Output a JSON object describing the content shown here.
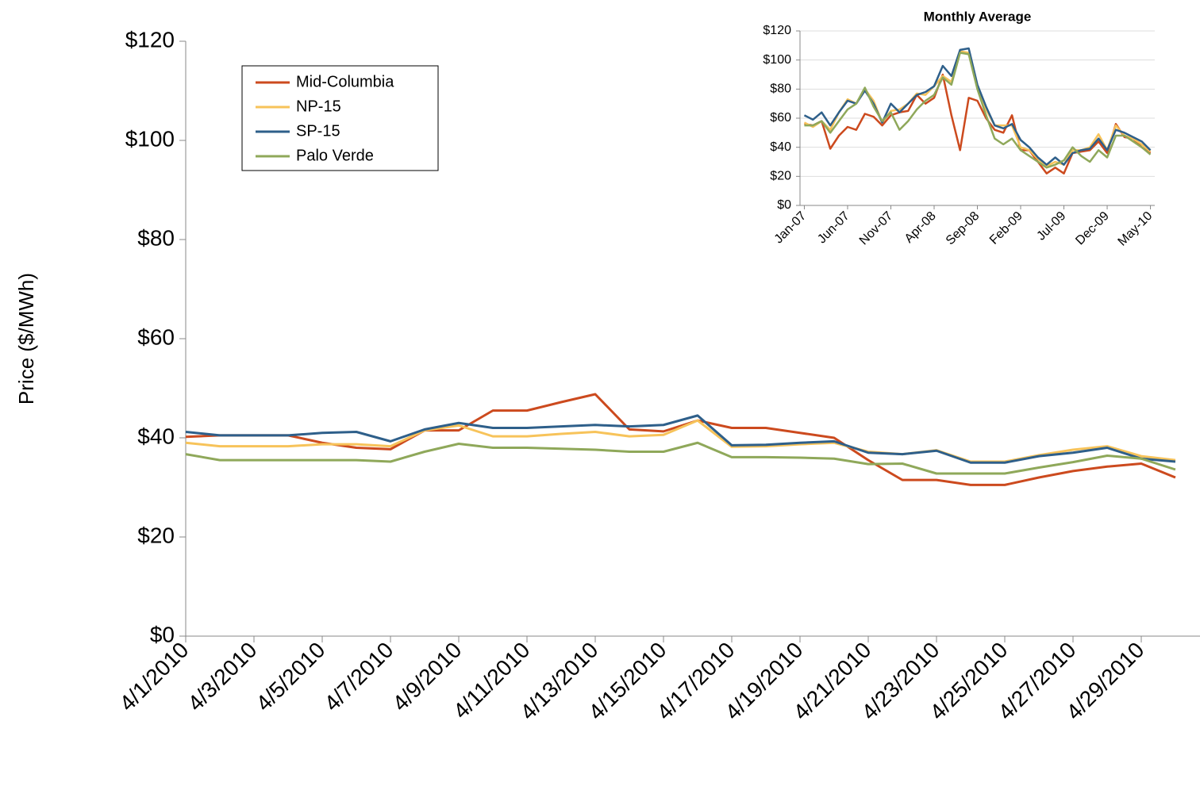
{
  "chart_data": [
    {
      "type": "line",
      "y_label": "Price ($/MWh)",
      "categories": [
        "4/1/2010",
        null,
        "4/3/2010",
        null,
        "4/5/2010",
        null,
        "4/7/2010",
        null,
        "4/9/2010",
        null,
        "4/11/2010",
        null,
        "4/13/2010",
        null,
        "4/15/2010",
        null,
        "4/17/2010",
        null,
        "4/19/2010",
        null,
        "4/21/2010",
        null,
        "4/23/2010",
        null,
        "4/25/2010",
        null,
        "4/27/2010",
        null,
        "4/29/2010",
        null
      ],
      "series": [
        {
          "name": "Mid-Columbia",
          "color": "#cc4a1e",
          "values": [
            40.2,
            40.5,
            40.5,
            40.5,
            39,
            38,
            37.7,
            41.5,
            41.5,
            45.5,
            45.5,
            47.2,
            48.8,
            41.7,
            41.3,
            43.5,
            42,
            42,
            41,
            40,
            35.5,
            31.5,
            31.5,
            30.5,
            30.5,
            32,
            33.3,
            34.2,
            34.8,
            32
          ]
        },
        {
          "name": "NP-15",
          "color": "#f7c35a",
          "values": [
            39,
            38.3,
            38.3,
            38.3,
            38.7,
            38.7,
            38.3,
            41.5,
            42.5,
            40.3,
            40.3,
            40.8,
            41.2,
            40.3,
            40.6,
            43.5,
            38.2,
            38.3,
            38.7,
            39,
            37.2,
            36.7,
            37.5,
            35.2,
            35.2,
            36.5,
            37.6,
            38.3,
            36.3,
            35.5
          ]
        },
        {
          "name": "SP-15",
          "color": "#2e5f8a",
          "values": [
            41.2,
            40.5,
            40.5,
            40.5,
            41,
            41.2,
            39.3,
            41.7,
            43,
            42,
            42,
            42.3,
            42.6,
            42.3,
            42.6,
            44.5,
            38.5,
            38.6,
            39,
            39.3,
            37,
            36.7,
            37.4,
            35,
            35,
            36.3,
            37,
            38,
            35.8,
            35.2
          ]
        },
        {
          "name": "Palo Verde",
          "color": "#8fa85a",
          "values": [
            36.7,
            35.5,
            35.5,
            35.5,
            35.5,
            35.5,
            35.2,
            37.2,
            38.8,
            38,
            38,
            37.8,
            37.6,
            37.2,
            37.2,
            39,
            36.1,
            36.1,
            36,
            35.8,
            34.7,
            34.8,
            32.8,
            32.8,
            32.8,
            34,
            35.1,
            36.4,
            35.8,
            33.6
          ]
        }
      ],
      "ylim": [
        0,
        120
      ],
      "yticks": [
        {
          "value": 0,
          "label": "$0"
        },
        {
          "value": 20,
          "label": "$20"
        },
        {
          "value": 40,
          "label": "$40"
        },
        {
          "value": 60,
          "label": "$60"
        },
        {
          "value": 80,
          "label": "$80"
        },
        {
          "value": 100,
          "label": "$100"
        },
        {
          "value": 120,
          "label": "$120"
        }
      ],
      "grid": false,
      "legend": "upper left"
    },
    {
      "type": "line",
      "title": "Monthly Average",
      "categories": [
        "Jan-07",
        null,
        null,
        null,
        null,
        "Jun-07",
        null,
        null,
        null,
        null,
        "Nov-07",
        null,
        null,
        null,
        null,
        "Apr-08",
        null,
        null,
        null,
        null,
        "Sep-08",
        null,
        null,
        null,
        null,
        "Feb-09",
        null,
        null,
        null,
        null,
        "Jul-09",
        null,
        null,
        null,
        null,
        "Dec-09",
        null,
        null,
        null,
        null,
        "May-10"
      ],
      "series": [
        {
          "color": "#cc4a1e",
          "values": [
            56,
            55,
            58,
            39,
            48,
            54,
            52,
            63,
            61,
            55,
            62,
            64,
            65,
            76,
            70,
            74,
            90,
            62,
            38,
            74,
            72,
            60,
            52,
            50,
            62,
            38,
            38,
            30,
            22,
            26,
            22,
            36,
            37,
            38,
            44,
            36,
            56,
            47,
            46,
            40,
            36
          ]
        },
        {
          "color": "#f7c35a",
          "values": [
            57,
            54,
            58,
            52,
            64,
            73,
            70,
            80,
            72,
            57,
            65,
            66,
            70,
            77,
            76,
            82,
            89,
            85,
            106,
            105,
            82,
            66,
            55,
            55,
            55,
            40,
            38,
            32,
            27,
            30,
            28,
            38,
            38,
            40,
            49,
            38,
            55,
            48,
            46,
            42,
            37
          ]
        },
        {
          "color": "#2e5f8a",
          "values": [
            62,
            59,
            64,
            55,
            64,
            72,
            70,
            79,
            70,
            57,
            70,
            64,
            70,
            76,
            78,
            82,
            96,
            89,
            107,
            108,
            83,
            68,
            55,
            53,
            56,
            45,
            40,
            33,
            28,
            33,
            28,
            36,
            38,
            39,
            46,
            38,
            52,
            50,
            47,
            44,
            38
          ]
        },
        {
          "color": "#8fa85a",
          "values": [
            55,
            55,
            58,
            50,
            58,
            66,
            70,
            81,
            68,
            58,
            64,
            52,
            58,
            66,
            72,
            76,
            88,
            83,
            105,
            104,
            80,
            62,
            46,
            42,
            46,
            38,
            34,
            30,
            26,
            28,
            31,
            40,
            34,
            30,
            38,
            33,
            48,
            48,
            44,
            40,
            35
          ]
        }
      ],
      "ylim": [
        0,
        120
      ],
      "yticks": [
        {
          "value": 0,
          "label": "$0"
        },
        {
          "value": 20,
          "label": "$20"
        },
        {
          "value": 40,
          "label": "$40"
        },
        {
          "value": 60,
          "label": "$60"
        },
        {
          "value": 80,
          "label": "$80"
        },
        {
          "value": 100,
          "label": "$100"
        },
        {
          "value": 120,
          "label": "$120"
        }
      ],
      "grid": true
    }
  ]
}
